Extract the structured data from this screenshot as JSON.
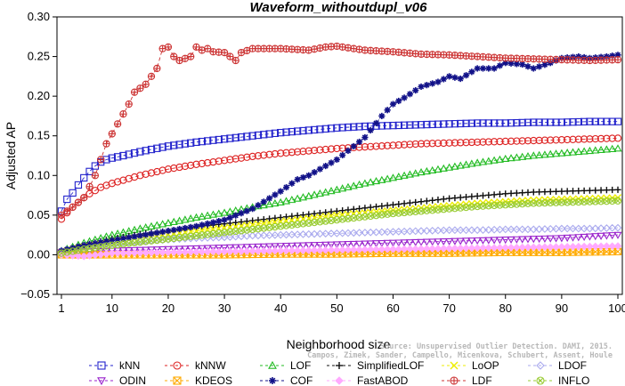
{
  "chart_data": {
    "type": "line",
    "title": "Waveform_withoutdupl_v06",
    "xlabel": "Neighborhood size",
    "ylabel": "Adjusted AP",
    "xlim": [
      1,
      100
    ],
    "ylim": [
      -0.05,
      0.3
    ],
    "xticks": [
      1,
      10,
      20,
      30,
      40,
      50,
      60,
      70,
      80,
      90,
      100
    ],
    "yticks": [
      "−0.05",
      "0.00",
      "0.05",
      "0.10",
      "0.15",
      "0.20",
      "0.25",
      "0.30"
    ],
    "yticks_values": [
      -0.05,
      0.0,
      0.05,
      0.1,
      0.15,
      0.2,
      0.25,
      0.3
    ],
    "legend_position": "bottom",
    "grid": false,
    "watermark": [
      "Source: Unsupervised Outlier Detection. DAMI, 2015.",
      "Campos, Zimek, Sander, Campello, Micenkova, Schubert, Assent, Houle"
    ],
    "series": [
      {
        "name": "kNN",
        "color": "#2222cc",
        "marker": "square",
        "points": [
          [
            1,
            0.055
          ],
          [
            2,
            0.07
          ],
          [
            3,
            0.078
          ],
          [
            4,
            0.088
          ],
          [
            5,
            0.097
          ],
          [
            6,
            0.105
          ],
          [
            7,
            0.112
          ],
          [
            8,
            0.117
          ],
          [
            9,
            0.12
          ],
          [
            10,
            0.122
          ],
          [
            12,
            0.125
          ],
          [
            15,
            0.13
          ],
          [
            20,
            0.137
          ],
          [
            25,
            0.142
          ],
          [
            30,
            0.146
          ],
          [
            35,
            0.15
          ],
          [
            40,
            0.154
          ],
          [
            45,
            0.157
          ],
          [
            50,
            0.16
          ],
          [
            55,
            0.162
          ],
          [
            60,
            0.163
          ],
          [
            65,
            0.164
          ],
          [
            70,
            0.165
          ],
          [
            75,
            0.166
          ],
          [
            80,
            0.166
          ],
          [
            85,
            0.167
          ],
          [
            90,
            0.167
          ],
          [
            95,
            0.168
          ],
          [
            100,
            0.168
          ]
        ]
      },
      {
        "name": "kNNW",
        "color": "#dd2222",
        "marker": "circle",
        "points": [
          [
            1,
            0.045
          ],
          [
            2,
            0.053
          ],
          [
            3,
            0.06
          ],
          [
            4,
            0.066
          ],
          [
            5,
            0.072
          ],
          [
            6,
            0.077
          ],
          [
            7,
            0.081
          ],
          [
            8,
            0.085
          ],
          [
            10,
            0.09
          ],
          [
            15,
            0.1
          ],
          [
            20,
            0.108
          ],
          [
            25,
            0.114
          ],
          [
            30,
            0.119
          ],
          [
            35,
            0.124
          ],
          [
            40,
            0.128
          ],
          [
            45,
            0.131
          ],
          [
            50,
            0.134
          ],
          [
            55,
            0.136
          ],
          [
            60,
            0.138
          ],
          [
            65,
            0.14
          ],
          [
            70,
            0.141
          ],
          [
            75,
            0.142
          ],
          [
            80,
            0.143
          ],
          [
            85,
            0.144
          ],
          [
            90,
            0.145
          ],
          [
            95,
            0.146
          ],
          [
            100,
            0.147
          ]
        ]
      },
      {
        "name": "LOF",
        "color": "#22bb22",
        "marker": "triangle-up",
        "points": [
          [
            1,
            0.005
          ],
          [
            5,
            0.015
          ],
          [
            10,
            0.025
          ],
          [
            15,
            0.033
          ],
          [
            20,
            0.04
          ],
          [
            25,
            0.047
          ],
          [
            30,
            0.053
          ],
          [
            35,
            0.06
          ],
          [
            40,
            0.066
          ],
          [
            45,
            0.074
          ],
          [
            50,
            0.082
          ],
          [
            55,
            0.09
          ],
          [
            60,
            0.097
          ],
          [
            65,
            0.104
          ],
          [
            70,
            0.11
          ],
          [
            75,
            0.116
          ],
          [
            80,
            0.121
          ],
          [
            85,
            0.125
          ],
          [
            90,
            0.128
          ],
          [
            95,
            0.131
          ],
          [
            100,
            0.134
          ]
        ]
      },
      {
        "name": "SimplifiedLOF",
        "color": "#111111",
        "marker": "plus",
        "points": [
          [
            1,
            0.003
          ],
          [
            5,
            0.012
          ],
          [
            10,
            0.02
          ],
          [
            15,
            0.026
          ],
          [
            20,
            0.03
          ],
          [
            25,
            0.035
          ],
          [
            30,
            0.039
          ],
          [
            35,
            0.043
          ],
          [
            40,
            0.047
          ],
          [
            45,
            0.051
          ],
          [
            50,
            0.055
          ],
          [
            55,
            0.059
          ],
          [
            60,
            0.063
          ],
          [
            65,
            0.067
          ],
          [
            70,
            0.071
          ],
          [
            75,
            0.074
          ],
          [
            80,
            0.077
          ],
          [
            85,
            0.079
          ],
          [
            90,
            0.08
          ],
          [
            95,
            0.081
          ],
          [
            100,
            0.082
          ]
        ]
      },
      {
        "name": "LoOP",
        "color": "#eeee00",
        "marker": "x",
        "points": [
          [
            1,
            0.003
          ],
          [
            5,
            0.01
          ],
          [
            10,
            0.016
          ],
          [
            15,
            0.021
          ],
          [
            20,
            0.026
          ],
          [
            25,
            0.03
          ],
          [
            30,
            0.034
          ],
          [
            35,
            0.038
          ],
          [
            40,
            0.042
          ],
          [
            45,
            0.046
          ],
          [
            50,
            0.05
          ],
          [
            55,
            0.053
          ],
          [
            60,
            0.056
          ],
          [
            65,
            0.059
          ],
          [
            70,
            0.062
          ],
          [
            75,
            0.065
          ],
          [
            80,
            0.067
          ],
          [
            85,
            0.069
          ],
          [
            90,
            0.07
          ],
          [
            95,
            0.071
          ],
          [
            100,
            0.072
          ]
        ]
      },
      {
        "name": "LDOF",
        "color": "#aaaaee",
        "marker": "diamond",
        "points": [
          [
            1,
            0.005
          ],
          [
            5,
            0.01
          ],
          [
            10,
            0.014
          ],
          [
            15,
            0.017
          ],
          [
            20,
            0.019
          ],
          [
            25,
            0.021
          ],
          [
            30,
            0.022
          ],
          [
            35,
            0.024
          ],
          [
            40,
            0.025
          ],
          [
            45,
            0.026
          ],
          [
            50,
            0.027
          ],
          [
            55,
            0.028
          ],
          [
            60,
            0.029
          ],
          [
            65,
            0.03
          ],
          [
            70,
            0.031
          ],
          [
            75,
            0.031
          ],
          [
            80,
            0.032
          ],
          [
            85,
            0.032
          ],
          [
            90,
            0.033
          ],
          [
            95,
            0.033
          ],
          [
            100,
            0.034
          ]
        ]
      },
      {
        "name": "ODIN",
        "color": "#9922cc",
        "marker": "triangle-down",
        "points": [
          [
            1,
            0.003
          ],
          [
            5,
            0.004
          ],
          [
            10,
            0.005
          ],
          [
            15,
            0.006
          ],
          [
            20,
            0.007
          ],
          [
            25,
            0.008
          ],
          [
            30,
            0.009
          ],
          [
            35,
            0.01
          ],
          [
            40,
            0.011
          ],
          [
            45,
            0.012
          ],
          [
            50,
            0.013
          ],
          [
            55,
            0.014
          ],
          [
            60,
            0.015
          ],
          [
            65,
            0.016
          ],
          [
            70,
            0.017
          ],
          [
            75,
            0.018
          ],
          [
            80,
            0.019
          ],
          [
            85,
            0.02
          ],
          [
            90,
            0.021
          ],
          [
            95,
            0.023
          ],
          [
            100,
            0.025
          ]
        ]
      },
      {
        "name": "KDEOS",
        "color": "#ffaa00",
        "marker": "square-x",
        "points": [
          [
            1,
            0.0
          ],
          [
            10,
            0.0
          ],
          [
            20,
            0.0
          ],
          [
            30,
            0.0
          ],
          [
            40,
            0.001
          ],
          [
            50,
            0.001
          ],
          [
            60,
            0.002
          ],
          [
            70,
            0.002
          ],
          [
            80,
            0.003
          ],
          [
            90,
            0.003
          ],
          [
            100,
            0.004
          ]
        ]
      },
      {
        "name": "COF",
        "color": "#111188",
        "marker": "asterisk",
        "points": [
          [
            1,
            0.005
          ],
          [
            5,
            0.012
          ],
          [
            10,
            0.018
          ],
          [
            15,
            0.024
          ],
          [
            20,
            0.03
          ],
          [
            25,
            0.036
          ],
          [
            30,
            0.044
          ],
          [
            35,
            0.058
          ],
          [
            40,
            0.08
          ],
          [
            43,
            0.095
          ],
          [
            45,
            0.1
          ],
          [
            50,
            0.12
          ],
          [
            55,
            0.148
          ],
          [
            58,
            0.175
          ],
          [
            60,
            0.19
          ],
          [
            62,
            0.198
          ],
          [
            65,
            0.212
          ],
          [
            68,
            0.218
          ],
          [
            70,
            0.225
          ],
          [
            72,
            0.222
          ],
          [
            75,
            0.235
          ],
          [
            78,
            0.235
          ],
          [
            80,
            0.242
          ],
          [
            83,
            0.24
          ],
          [
            85,
            0.235
          ],
          [
            88,
            0.242
          ],
          [
            90,
            0.248
          ],
          [
            93,
            0.25
          ],
          [
            95,
            0.248
          ],
          [
            98,
            0.25
          ],
          [
            100,
            0.252
          ]
        ]
      },
      {
        "name": "FastABOD",
        "color": "#ffaaff",
        "marker": "diamond-filled",
        "points": [
          [
            1,
            0.0
          ],
          [
            5,
            -0.002
          ],
          [
            10,
            0.002
          ],
          [
            20,
            0.003
          ],
          [
            30,
            0.004
          ],
          [
            40,
            0.005
          ],
          [
            50,
            0.006
          ],
          [
            60,
            0.007
          ],
          [
            70,
            0.008
          ],
          [
            80,
            0.009
          ],
          [
            90,
            0.01
          ],
          [
            100,
            0.011
          ]
        ]
      },
      {
        "name": "LDF",
        "color": "#cc3333",
        "marker": "circle-plus",
        "points": [
          [
            1,
            0.05
          ],
          [
            3,
            0.06
          ],
          [
            5,
            0.072
          ],
          [
            7,
            0.1
          ],
          [
            9,
            0.14
          ],
          [
            11,
            0.165
          ],
          [
            13,
            0.19
          ],
          [
            14,
            0.205
          ],
          [
            16,
            0.215
          ],
          [
            18,
            0.235
          ],
          [
            19,
            0.26
          ],
          [
            20,
            0.262
          ],
          [
            21,
            0.25
          ],
          [
            22,
            0.245
          ],
          [
            24,
            0.25
          ],
          [
            25,
            0.262
          ],
          [
            26,
            0.258
          ],
          [
            27,
            0.26
          ],
          [
            28,
            0.256
          ],
          [
            30,
            0.255
          ],
          [
            32,
            0.245
          ],
          [
            33,
            0.255
          ],
          [
            35,
            0.26
          ],
          [
            40,
            0.26
          ],
          [
            45,
            0.258
          ],
          [
            48,
            0.262
          ],
          [
            50,
            0.263
          ],
          [
            55,
            0.258
          ],
          [
            60,
            0.256
          ],
          [
            65,
            0.253
          ],
          [
            70,
            0.252
          ],
          [
            75,
            0.25
          ],
          [
            80,
            0.248
          ],
          [
            85,
            0.247
          ],
          [
            90,
            0.246
          ],
          [
            95,
            0.245
          ],
          [
            100,
            0.246
          ]
        ]
      },
      {
        "name": "INFLO",
        "color": "#99cc33",
        "marker": "circle-x",
        "points": [
          [
            1,
            0.002
          ],
          [
            5,
            0.007
          ],
          [
            10,
            0.012
          ],
          [
            15,
            0.016
          ],
          [
            20,
            0.02
          ],
          [
            25,
            0.024
          ],
          [
            30,
            0.028
          ],
          [
            35,
            0.032
          ],
          [
            40,
            0.036
          ],
          [
            45,
            0.04
          ],
          [
            50,
            0.044
          ],
          [
            55,
            0.048
          ],
          [
            60,
            0.052
          ],
          [
            65,
            0.055
          ],
          [
            70,
            0.058
          ],
          [
            75,
            0.061
          ],
          [
            80,
            0.063
          ],
          [
            85,
            0.065
          ],
          [
            90,
            0.066
          ],
          [
            95,
            0.067
          ],
          [
            100,
            0.068
          ]
        ]
      }
    ]
  }
}
